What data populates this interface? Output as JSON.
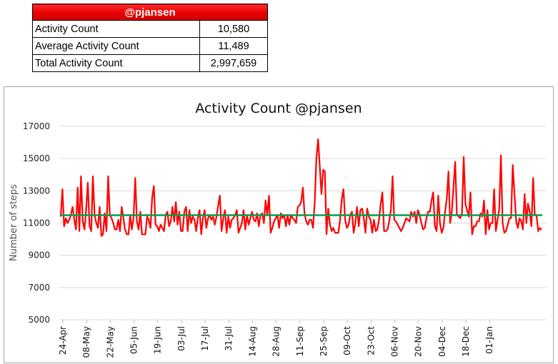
{
  "summary": {
    "header": "@pjansen",
    "rows": [
      {
        "label": "Activity Count",
        "value": "10,580"
      },
      {
        "label": "Average Activity Count",
        "value": "11,489"
      },
      {
        "label": "Total Activity Count",
        "value": "2,997,659"
      }
    ]
  },
  "chart_data": {
    "type": "line",
    "title": "Activity Count @pjansen",
    "xlabel": "",
    "ylabel": "Number of steps",
    "ylim": [
      5000,
      17000
    ],
    "yticks": [
      "17000",
      "15000",
      "13000",
      "11000",
      "9000",
      "7000",
      "5000"
    ],
    "ytick_values": [
      17000,
      15000,
      13000,
      11000,
      9000,
      7000,
      5000
    ],
    "xticks": [
      "24-Apr",
      "08-May",
      "22-May",
      "05-Jun",
      "19-Jun",
      "03-Jul",
      "17-Jul",
      "31-Jul",
      "14-Aug",
      "28-Aug",
      "11-Sep",
      "25-Sep",
      "09-Oct",
      "23-Oct",
      "06-Nov",
      "20-Nov",
      "04-Dec",
      "18-Dec",
      "01-Jan"
    ],
    "xtick_interval_days": 14,
    "grid": true,
    "legend": "none",
    "series": [
      {
        "name": "Activity Count",
        "color": "#ff0000",
        "values": [
          11400,
          13100,
          10800,
          11300,
          11000,
          11200,
          11500,
          12000,
          11200,
          10600,
          13200,
          10500,
          13900,
          11100,
          10600,
          11800,
          13500,
          10800,
          10500,
          13900,
          11500,
          11000,
          10700,
          12000,
          10200,
          10300,
          11600,
          10500,
          13900,
          11500,
          11300,
          11000,
          10600,
          10600,
          11200,
          10500,
          12000,
          11300,
          10600,
          10300,
          10300,
          11500,
          10600,
          11300,
          13800,
          11100,
          10600,
          11700,
          10300,
          10300,
          10300,
          11400,
          11200,
          10700,
          12600,
          13300,
          10900,
          10800,
          10500,
          10900,
          10700,
          10500,
          11500,
          11700,
          10800,
          11100,
          12000,
          11100,
          12300,
          10900,
          11700,
          10500,
          10500,
          11700,
          12000,
          10500,
          11800,
          11000,
          11400,
          11200,
          10500,
          11300,
          11800,
          10300,
          11300,
          11800,
          10700,
          11300,
          11500,
          11200,
          11400,
          10900,
          11400,
          12100,
          12700,
          10500,
          11300,
          11800,
          10400,
          11400,
          10700,
          11200,
          11300,
          11500,
          11800,
          10400,
          10700,
          11000,
          11800,
          10600,
          11500,
          10900,
          11300,
          11700,
          11200,
          11100,
          11600,
          10800,
          11500,
          11600,
          11000,
          12400,
          11500,
          12700,
          10400,
          10700,
          11100,
          11300,
          11500,
          10700,
          11600,
          11300,
          11500,
          10800,
          11500,
          10900,
          11500,
          11300,
          11200,
          11000,
          12000,
          12100,
          12300,
          13200,
          11600,
          11100,
          10900,
          11200,
          11200,
          10700,
          12300,
          15000,
          16200,
          14500,
          12800,
          14300,
          14200,
          10300,
          11900,
          10900,
          10500,
          10700,
          10400,
          10400,
          10400,
          11200,
          12500,
          13100,
          11200,
          10700,
          10900,
          11500,
          11700,
          10400,
          11000,
          12000,
          10800,
          11800,
          11900,
          11300,
          10400,
          11900,
          11400,
          11200,
          10400,
          11200,
          10500,
          10600,
          11200,
          12200,
          12900,
          10500,
          10500,
          10600,
          11100,
          11800,
          13900,
          11200,
          11100,
          10900,
          10700,
          10500,
          10700,
          11000,
          11300,
          11200,
          11100,
          11700,
          11400,
          11700,
          11000,
          11800,
          11500,
          11000,
          10600,
          10700,
          11300,
          11700,
          11700,
          12400,
          12900,
          10800,
          10500,
          12700,
          11000,
          10400,
          10700,
          11700,
          12500,
          14200,
          11000,
          11700,
          13300,
          14800,
          11500,
          11400,
          11300,
          11600,
          15100,
          12200,
          11800,
          11400,
          12900,
          10300,
          10800,
          10800,
          11100,
          11100,
          11600,
          11400,
          12400,
          10300,
          11800,
          10600,
          11000,
          11000,
          13100,
          10500,
          11200,
          11900,
          15200,
          11000,
          10400,
          10500,
          10900,
          11300,
          11300,
          14600,
          12800,
          11100,
          10700,
          11300,
          11100,
          10600,
          12800,
          11000,
          12200,
          11700,
          10800,
          13800,
          11500,
          11500,
          10500,
          10700,
          10580
        ]
      },
      {
        "name": "Average Activity Count",
        "color": "#00a050",
        "values": [
          11489
        ]
      }
    ]
  }
}
